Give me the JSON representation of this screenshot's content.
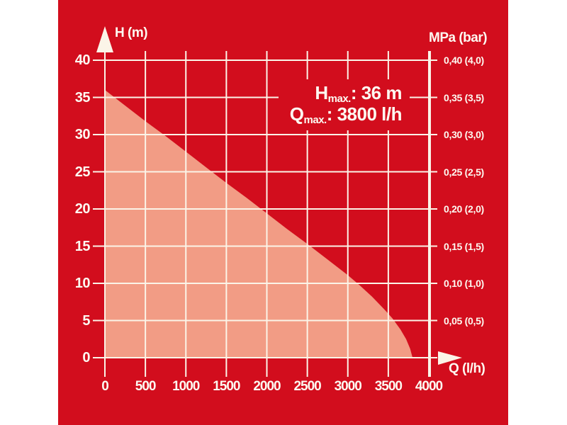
{
  "colors": {
    "panel_red": "#d20d1d",
    "fill_salmon": "#f29c85",
    "grid_white": "#fbf4e8",
    "text_white": "#fdf9f1"
  },
  "chart": {
    "left_axis_title": "H (m)",
    "right_axis_title": "MPa (bar)",
    "x_axis_title": "Q (l/h)",
    "annotation": {
      "h_symbol": "H",
      "h_sub": "max.",
      "h_rest": ": 36 m",
      "q_symbol": "Q",
      "q_sub": "max.",
      "q_rest": ": 3800 l/h"
    }
  },
  "chart_data": {
    "type": "area",
    "xlabel": "Q (l/h)",
    "ylabel_left": "H (m)",
    "ylabel_right": "MPa (bar)",
    "xlim": [
      0,
      4000
    ],
    "ylim": [
      0,
      40
    ],
    "grid": true,
    "x_ticks": [
      0,
      500,
      1000,
      1500,
      2000,
      2500,
      3000,
      3500,
      4000
    ],
    "y_ticks_left": [
      0,
      5,
      10,
      15,
      20,
      25,
      30,
      35,
      40
    ],
    "y_ticks_right": [
      {
        "h": 40,
        "label": "0,40 (4,0)"
      },
      {
        "h": 35,
        "label": "0,35 (3,5)"
      },
      {
        "h": 30,
        "label": "0,30 (3,0)"
      },
      {
        "h": 25,
        "label": "0,25 (2,5)"
      },
      {
        "h": 20,
        "label": "0,20 (2,0)"
      },
      {
        "h": 15,
        "label": "0,15 (1,5)"
      },
      {
        "h": 10,
        "label": "0,10 (1,0)"
      },
      {
        "h": 5,
        "label": "0,05 (0,5)"
      }
    ],
    "h_max_m": 36,
    "q_max_lh": 3800,
    "series": [
      {
        "name": "pump-head-curve",
        "x": [
          0,
          250,
          500,
          750,
          1000,
          1250,
          1500,
          1750,
          2000,
          2250,
          2500,
          2750,
          3000,
          3150,
          3300,
          3450,
          3550,
          3650,
          3720,
          3770,
          3800
        ],
        "y": [
          36,
          33.9,
          31.8,
          29.8,
          27.7,
          25.6,
          23.5,
          21.5,
          19.4,
          17.3,
          15.3,
          13.2,
          11.1,
          9.7,
          8.2,
          6.5,
          5.3,
          3.8,
          2.5,
          1.2,
          0
        ]
      }
    ],
    "annotations": [
      "Hmax.: 36 m",
      "Qmax.: 3800 l/h"
    ]
  }
}
